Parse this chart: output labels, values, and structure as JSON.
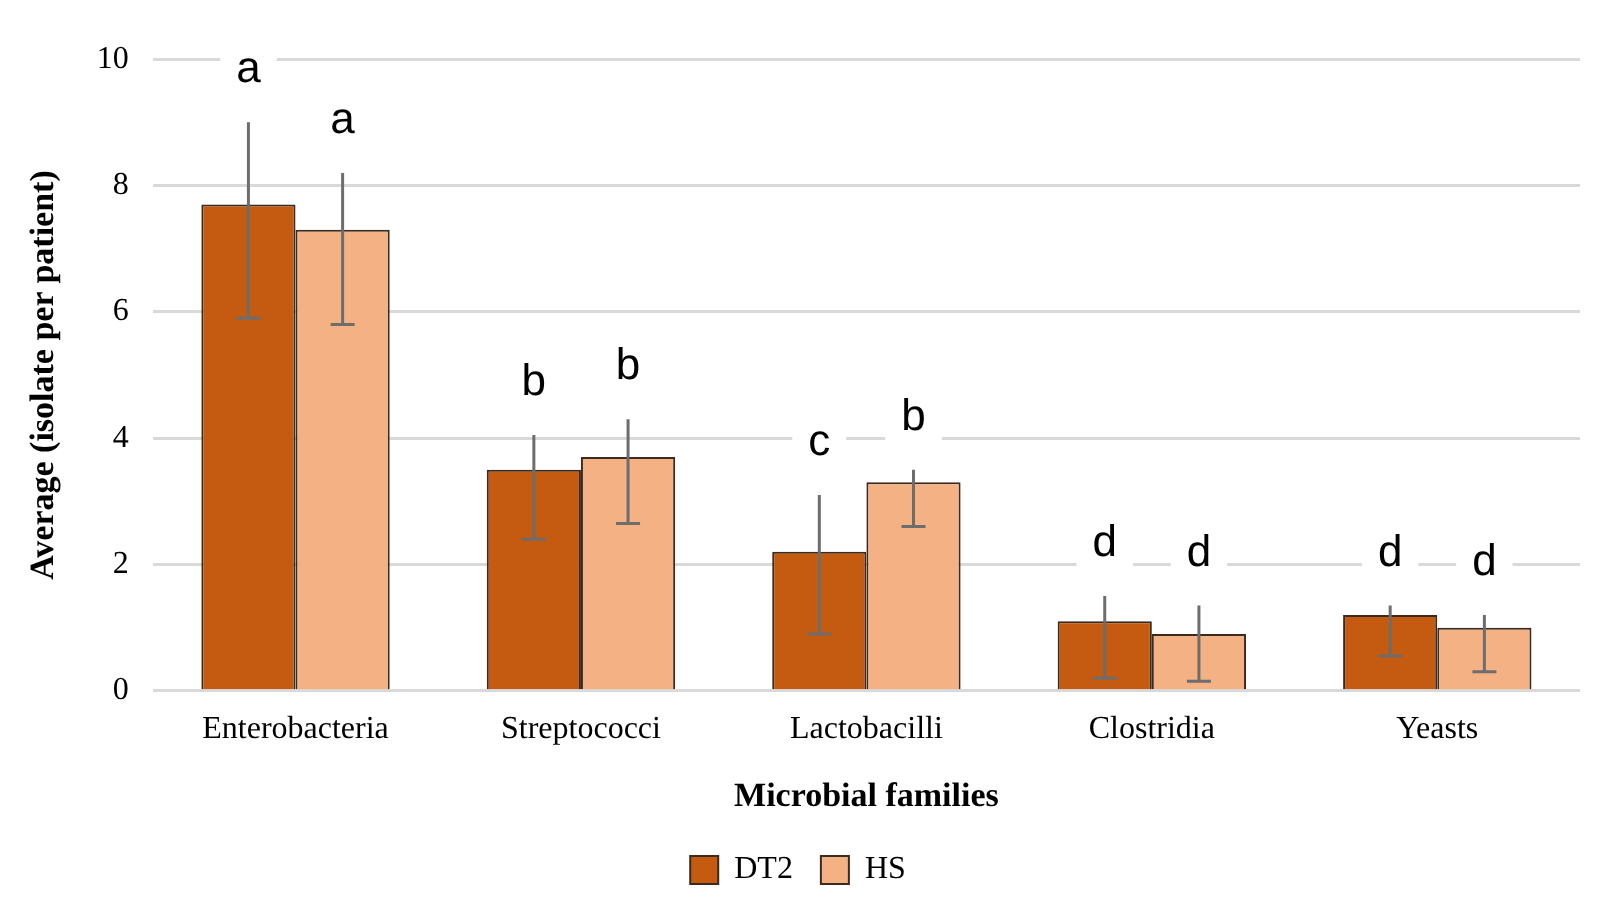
{
  "chart_data": {
    "type": "bar",
    "xlabel": "Microbial families",
    "ylabel": "Average (isolate per patient)",
    "categories": [
      "Enterobacteria",
      "Streptococci",
      "Lactobacilli",
      "Clostridia",
      "Yeasts"
    ],
    "series": [
      {
        "name": "DT2",
        "color": "#c55a11",
        "values": [
          7.7,
          3.5,
          2.2,
          1.1,
          1.2
        ],
        "errors": [
          [
            5.9,
            9.0
          ],
          [
            2.4,
            4.05
          ],
          [
            0.9,
            3.1
          ],
          [
            0.2,
            1.5
          ],
          [
            0.55,
            1.35
          ]
        ]
      },
      {
        "name": "HS",
        "color": "#f4b183",
        "values": [
          7.3,
          3.7,
          3.3,
          0.9,
          1.0
        ],
        "errors": [
          [
            5.8,
            8.2
          ],
          [
            2.65,
            4.3
          ],
          [
            2.6,
            3.5
          ],
          [
            0.15,
            1.35
          ],
          [
            0.3,
            1.2
          ]
        ]
      }
    ],
    "annotations": [
      "a",
      "a",
      "b",
      "b",
      "c",
      "b",
      "d",
      "d",
      "d",
      "d"
    ],
    "ylim": [
      0,
      10
    ],
    "yticks": [
      0,
      2,
      4,
      6,
      8,
      10
    ],
    "grid": "y",
    "legend": "bottom"
  }
}
